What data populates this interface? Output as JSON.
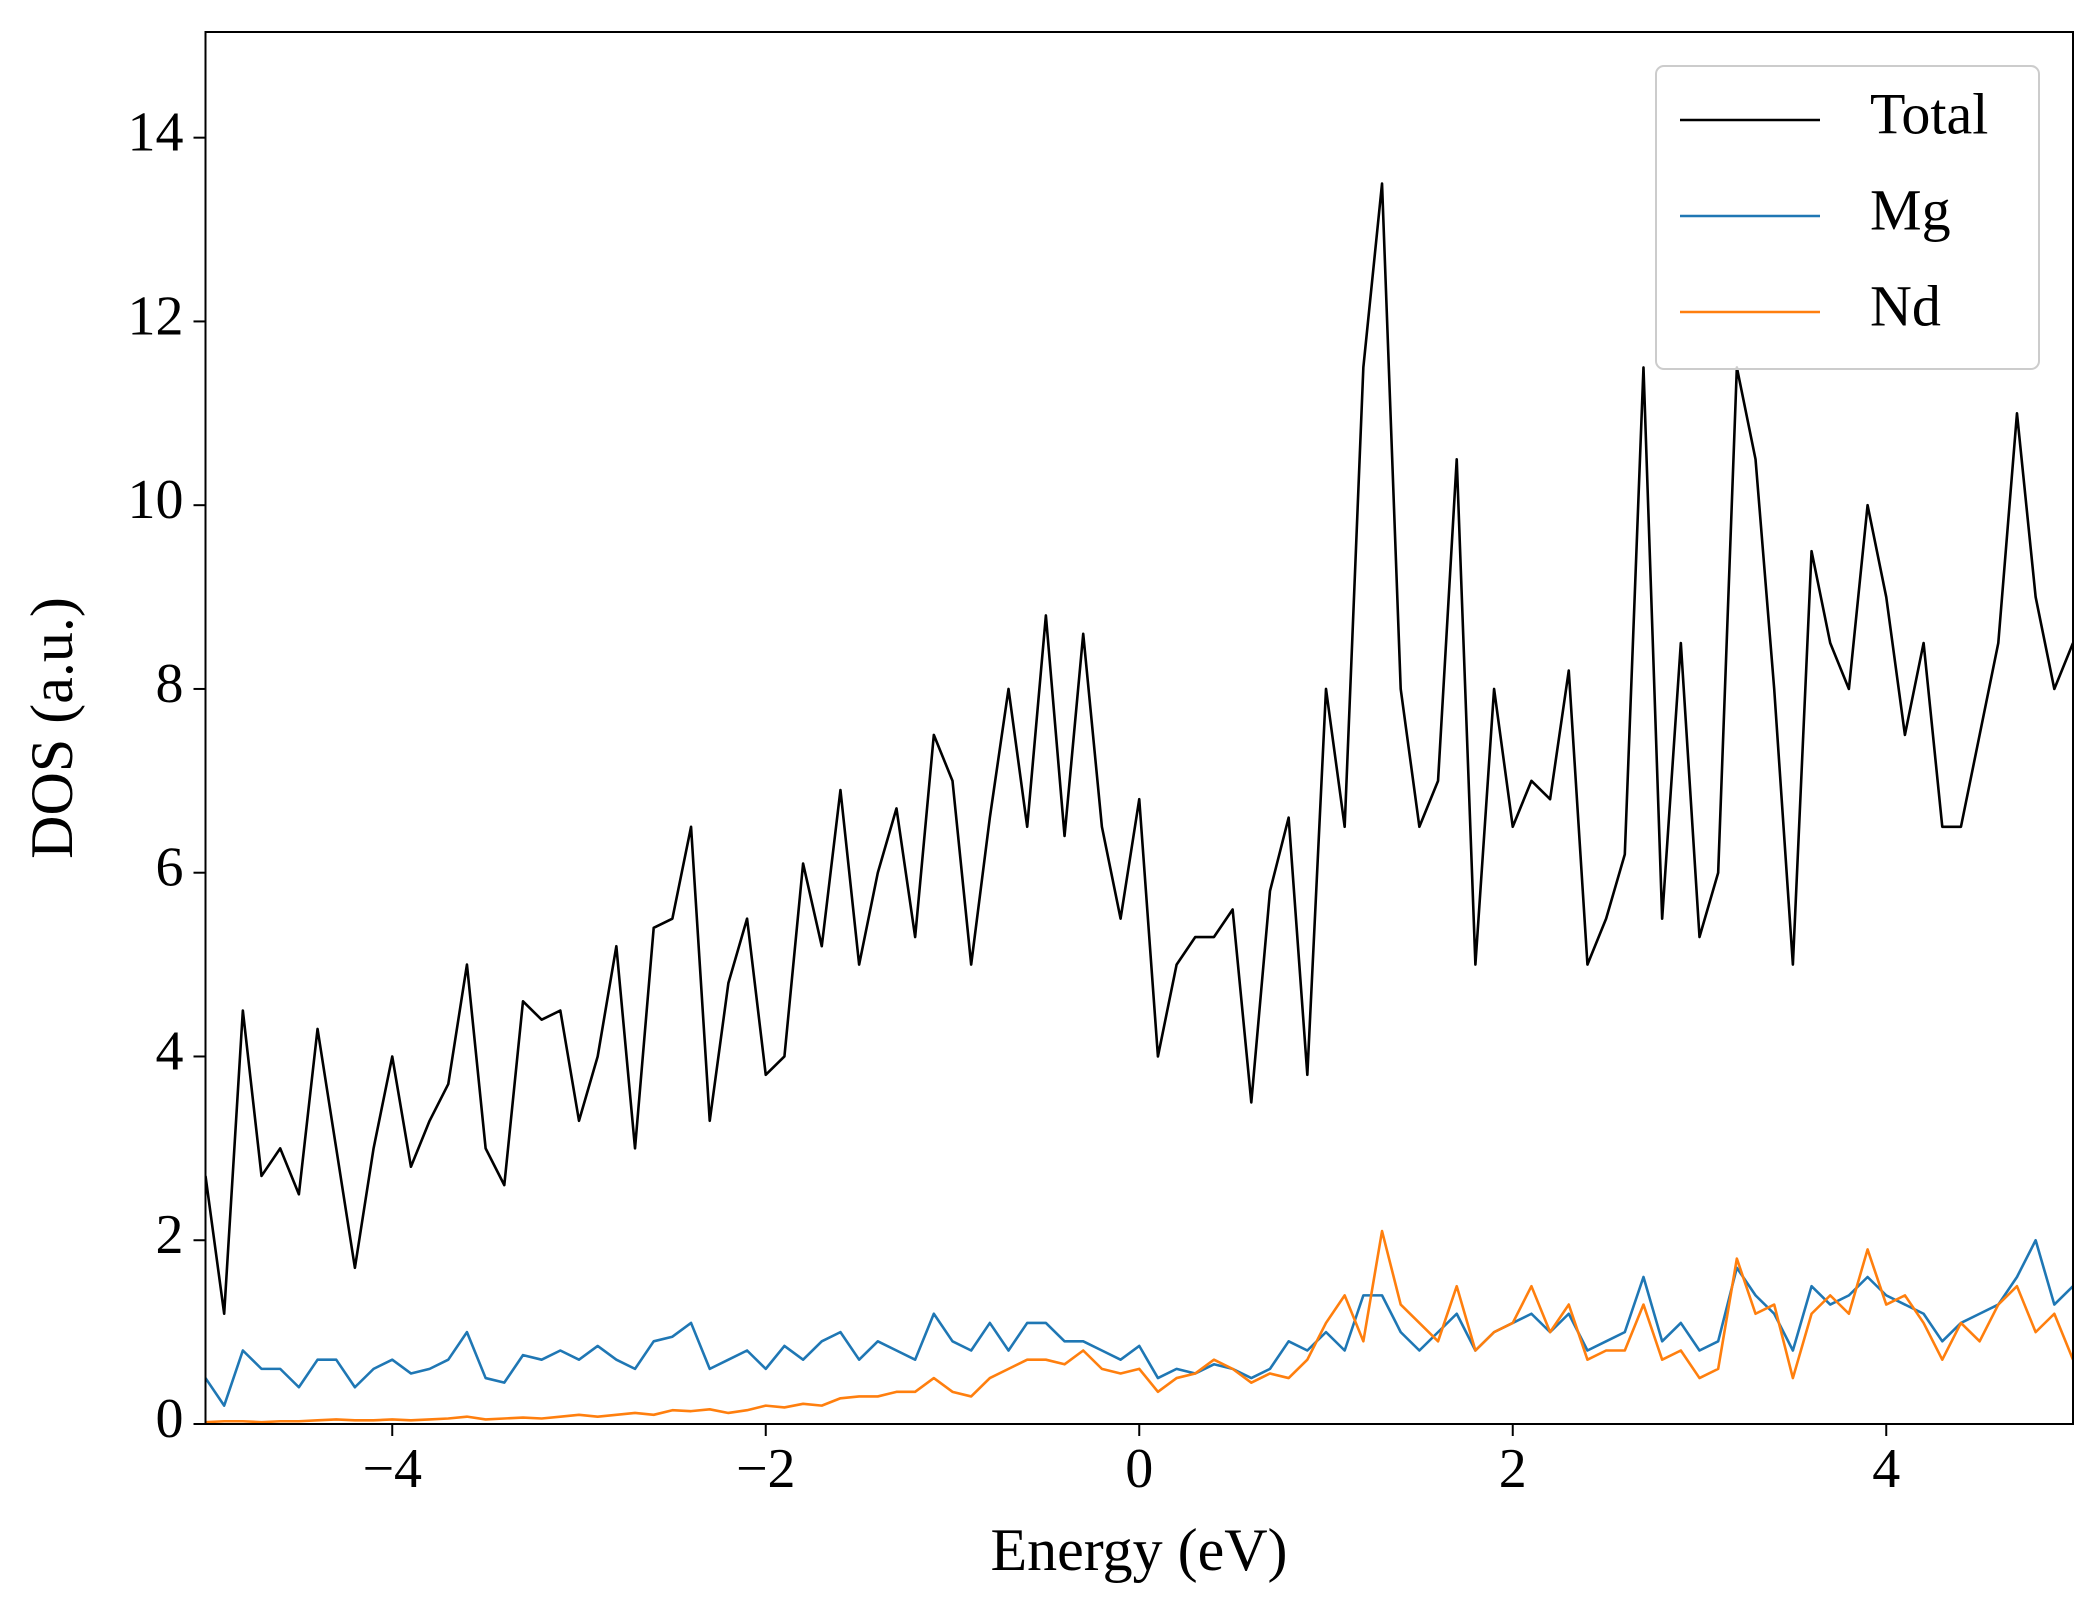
{
  "chart_data": {
    "type": "line",
    "xlabel": "Energy (eV)",
    "ylabel": "DOS (a.u.)",
    "x": [
      -5.0,
      -4.9,
      -4.8,
      -4.7,
      -4.6,
      -4.5,
      -4.4,
      -4.3,
      -4.2,
      -4.1,
      -4.0,
      -3.9,
      -3.8,
      -3.7,
      -3.6,
      -3.5,
      -3.4,
      -3.3,
      -3.2,
      -3.1,
      -3.0,
      -2.9,
      -2.8,
      -2.7,
      -2.6,
      -2.5,
      -2.4,
      -2.3,
      -2.2,
      -2.1,
      -2.0,
      -1.9,
      -1.8,
      -1.7,
      -1.6,
      -1.5,
      -1.4,
      -1.3,
      -1.2,
      -1.1,
      -1.0,
      -0.9,
      -0.8,
      -0.7,
      -0.6,
      -0.5,
      -0.4,
      -0.3,
      -0.2,
      -0.1,
      0.0,
      0.1,
      0.2,
      0.3,
      0.4,
      0.5,
      0.6,
      0.7,
      0.8,
      0.9,
      1.0,
      1.1,
      1.2,
      1.3,
      1.4,
      1.5,
      1.6,
      1.7,
      1.8,
      1.9,
      2.0,
      2.1,
      2.2,
      2.3,
      2.4,
      2.5,
      2.6,
      2.7,
      2.8,
      2.9,
      3.0,
      3.1,
      3.2,
      3.3,
      3.4,
      3.5,
      3.6,
      3.7,
      3.8,
      3.9,
      4.0,
      4.1,
      4.2,
      4.3,
      4.4,
      4.5,
      4.6,
      4.7,
      4.8,
      4.9,
      5.0
    ],
    "series": [
      {
        "name": "Total",
        "color": "#000000",
        "values": [
          2.7,
          1.2,
          4.5,
          2.7,
          3.0,
          2.5,
          4.3,
          3.0,
          1.7,
          3.0,
          4.0,
          2.8,
          3.3,
          3.7,
          5.0,
          3.0,
          2.6,
          4.6,
          4.4,
          4.5,
          3.3,
          4.0,
          5.2,
          3.0,
          5.4,
          5.5,
          6.5,
          3.3,
          4.8,
          5.5,
          3.8,
          4.0,
          6.1,
          5.2,
          6.9,
          5.0,
          6.0,
          6.7,
          5.3,
          7.5,
          7.0,
          5.0,
          6.6,
          8.0,
          6.5,
          8.8,
          6.4,
          8.6,
          6.5,
          5.5,
          6.8,
          4.0,
          5.0,
          5.3,
          5.3,
          5.6,
          3.5,
          5.8,
          6.6,
          3.8,
          8.0,
          6.5,
          11.5,
          13.5,
          8.0,
          6.5,
          7.0,
          10.5,
          5.0,
          8.0,
          6.5,
          7.0,
          6.8,
          8.2,
          5.0,
          5.5,
          6.2,
          11.5,
          5.5,
          8.5,
          5.3,
          6.0,
          11.5,
          10.5,
          8.0,
          5.0,
          9.5,
          8.5,
          8.0,
          10.0,
          9.0,
          7.5,
          8.5,
          6.5,
          6.5,
          7.5,
          8.5,
          11.0,
          9.0,
          8.0,
          8.5
        ]
      },
      {
        "name": "Mg",
        "color": "#1f77b4",
        "values": [
          0.5,
          0.2,
          0.8,
          0.6,
          0.6,
          0.4,
          0.7,
          0.7,
          0.4,
          0.6,
          0.7,
          0.55,
          0.6,
          0.7,
          1.0,
          0.5,
          0.45,
          0.75,
          0.7,
          0.8,
          0.7,
          0.85,
          0.7,
          0.6,
          0.9,
          0.95,
          1.1,
          0.6,
          0.7,
          0.8,
          0.6,
          0.85,
          0.7,
          0.9,
          1.0,
          0.7,
          0.9,
          0.8,
          0.7,
          1.2,
          0.9,
          0.8,
          1.1,
          0.8,
          1.1,
          1.1,
          0.9,
          0.9,
          0.8,
          0.7,
          0.85,
          0.5,
          0.6,
          0.55,
          0.65,
          0.6,
          0.5,
          0.6,
          0.9,
          0.8,
          1.0,
          0.8,
          1.4,
          1.4,
          1.0,
          0.8,
          1.0,
          1.2,
          0.8,
          1.0,
          1.1,
          1.2,
          1.0,
          1.2,
          0.8,
          0.9,
          1.0,
          1.6,
          0.9,
          1.1,
          0.8,
          0.9,
          1.7,
          1.4,
          1.2,
          0.8,
          1.5,
          1.3,
          1.4,
          1.6,
          1.4,
          1.3,
          1.2,
          0.9,
          1.1,
          1.2,
          1.3,
          1.6,
          2.0,
          1.3,
          1.5
        ]
      },
      {
        "name": "Nd",
        "color": "#ff7f0e",
        "values": [
          0.02,
          0.03,
          0.03,
          0.02,
          0.03,
          0.03,
          0.04,
          0.05,
          0.04,
          0.04,
          0.05,
          0.04,
          0.05,
          0.06,
          0.08,
          0.05,
          0.06,
          0.07,
          0.06,
          0.08,
          0.1,
          0.08,
          0.1,
          0.12,
          0.1,
          0.15,
          0.14,
          0.16,
          0.12,
          0.15,
          0.2,
          0.18,
          0.22,
          0.2,
          0.28,
          0.3,
          0.3,
          0.35,
          0.35,
          0.5,
          0.35,
          0.3,
          0.5,
          0.6,
          0.7,
          0.7,
          0.65,
          0.8,
          0.6,
          0.55,
          0.6,
          0.35,
          0.5,
          0.55,
          0.7,
          0.6,
          0.45,
          0.55,
          0.5,
          0.7,
          1.1,
          1.4,
          0.9,
          2.1,
          1.3,
          1.1,
          0.9,
          1.5,
          0.8,
          1.0,
          1.1,
          1.5,
          1.0,
          1.3,
          0.7,
          0.8,
          0.8,
          1.3,
          0.7,
          0.8,
          0.5,
          0.6,
          1.8,
          1.2,
          1.3,
          0.5,
          1.2,
          1.4,
          1.2,
          1.9,
          1.3,
          1.4,
          1.1,
          0.7,
          1.1,
          0.9,
          1.3,
          1.5,
          1.0,
          1.2,
          0.7
        ]
      }
    ],
    "xlim": [
      -5,
      5
    ],
    "ylim": [
      0,
      15.15
    ],
    "xticks": [
      {
        "value": -4,
        "label": "−4"
      },
      {
        "value": -2,
        "label": "−2"
      },
      0,
      2,
      4
    ],
    "yticks": [
      0,
      2,
      4,
      6,
      8,
      10,
      12,
      14
    ],
    "legend": "upper right"
  }
}
